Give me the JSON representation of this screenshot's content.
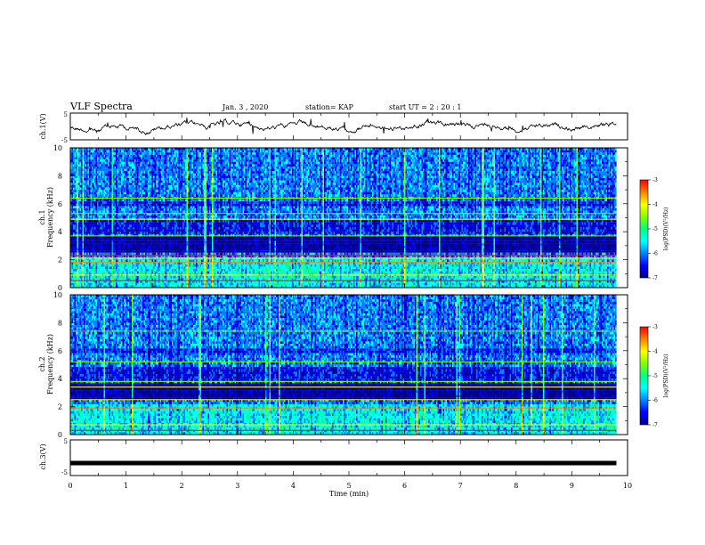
{
  "header": {
    "title": "VLF Spectra",
    "date": "Jan. 3 , 2020",
    "station": "station= KAP",
    "start": "start UT = 2 : 20 : 1"
  },
  "colors": {
    "frame": "#000000",
    "trace": "#000000",
    "colormap": [
      "#00008b",
      "#0000ff",
      "#0080ff",
      "#00ffff",
      "#00ff80",
      "#80ff00",
      "#ffff00",
      "#ff8000",
      "#ff0000",
      "#ffffff"
    ]
  },
  "chart_data": [
    {
      "type": "line",
      "name": "ch1-waveform",
      "ylabel": "ch.1(V)",
      "xlim": [
        0,
        10
      ],
      "ylim": [
        -5,
        5
      ],
      "y_ticklabels": [
        "5",
        "-5"
      ]
    },
    {
      "type": "heatmap",
      "name": "ch1-spectrogram",
      "ylabel_top": "ch.1",
      "ylabel": "Frequency (kHz)",
      "ylim": [
        0,
        10
      ],
      "y_ticklabels": [
        "0",
        "2",
        "4",
        "6",
        "8",
        "10"
      ],
      "colorbar": {
        "label": "log(PSD)(V²/Hz)",
        "range": [
          -7,
          -3
        ],
        "ticklabels": [
          "-3",
          "-4",
          "-5",
          "-6",
          "-7"
        ]
      }
    },
    {
      "type": "heatmap",
      "name": "ch2-spectrogram",
      "ylabel_top": "ch.2",
      "ylabel": "Frequency (kHz)",
      "ylim": [
        0,
        10
      ],
      "y_ticklabels": [
        "0",
        "2",
        "4",
        "6",
        "8",
        "10"
      ],
      "colorbar": {
        "label": "log(PSD)(V²/Hz)",
        "range": [
          -7,
          -3
        ],
        "ticklabels": [
          "-3",
          "-4",
          "-5",
          "-6",
          "-7"
        ]
      }
    },
    {
      "type": "line",
      "name": "ch3-waveform",
      "ylabel": "ch.3(V)",
      "xlim": [
        0,
        10
      ],
      "ylim": [
        -5,
        5
      ],
      "y_ticklabels": [
        "5",
        "-5"
      ],
      "level": -1.5
    }
  ],
  "xaxis": {
    "label": "Time (min)",
    "range": [
      0,
      10
    ],
    "ticklabels": [
      "0",
      "1",
      "2",
      "3",
      "4",
      "5",
      "6",
      "7",
      "8",
      "9",
      "10"
    ],
    "data_end": 9.8
  }
}
